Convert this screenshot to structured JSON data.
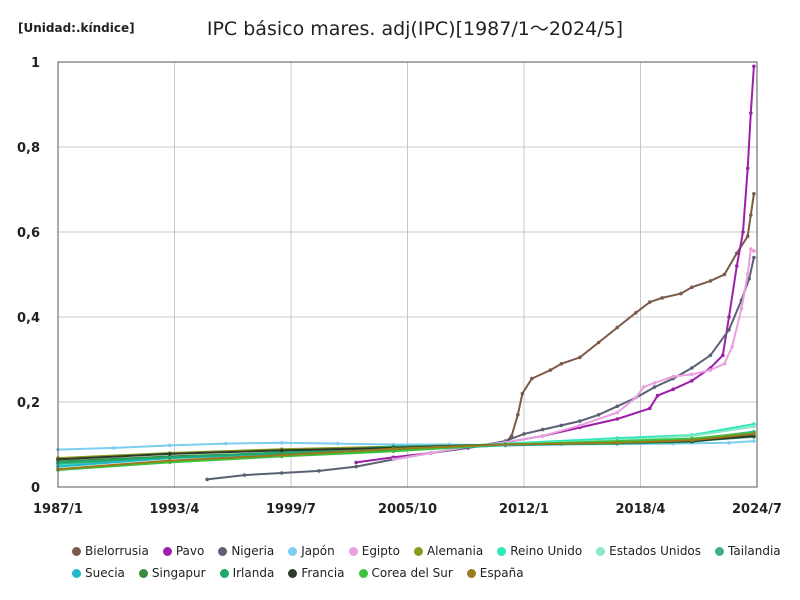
{
  "unit_label": "[Unidad:.kíndice]",
  "chart_data": {
    "type": "line",
    "title": "IPC básico mares. adj(IPC)[1987/1～2024/5]",
    "xlabel": "",
    "ylabel": "",
    "x_range": [
      "1987/1",
      "2024/7"
    ],
    "ylim": [
      0,
      1
    ],
    "grid": true,
    "legend_position": "bottom",
    "x_ticks": [
      "1987/1",
      "1993/4",
      "1999/7",
      "2005/10",
      "2012/1",
      "2018/4",
      "2024/7"
    ],
    "y_ticks": [
      "0",
      "0,2",
      "0,4",
      "0,6",
      "0,8",
      "1"
    ],
    "y_tick_values": [
      0,
      0.2,
      0.4,
      0.6,
      0.8,
      1
    ],
    "series": [
      {
        "name": "Bielorrusia",
        "color": "#7b5a4a",
        "points": [
          [
            "2009/1",
            0.095
          ],
          [
            "2010/1",
            0.098
          ],
          [
            "2011/1",
            0.105
          ],
          [
            "2011/5",
            0.12
          ],
          [
            "2011/9",
            0.17
          ],
          [
            "2011/12",
            0.22
          ],
          [
            "2012/6",
            0.255
          ],
          [
            "2013/6",
            0.275
          ],
          [
            "2014/1",
            0.29
          ],
          [
            "2015/1",
            0.305
          ],
          [
            "2016/1",
            0.34
          ],
          [
            "2017/1",
            0.375
          ],
          [
            "2018/1",
            0.41
          ],
          [
            "2018/10",
            0.435
          ],
          [
            "2019/6",
            0.445
          ],
          [
            "2020/6",
            0.455
          ],
          [
            "2021/1",
            0.47
          ],
          [
            "2022/1",
            0.485
          ],
          [
            "2022/10",
            0.5
          ],
          [
            "2023/6",
            0.55
          ],
          [
            "2024/1",
            0.59
          ],
          [
            "2024/3",
            0.64
          ],
          [
            "2024/5",
            0.69
          ]
        ]
      },
      {
        "name": "Pavo",
        "color": "#9b1fa8",
        "points": [
          [
            "2003/1",
            0.058
          ],
          [
            "2005/1",
            0.07
          ],
          [
            "2007/1",
            0.08
          ],
          [
            "2009/1",
            0.092
          ],
          [
            "2011/1",
            0.105
          ],
          [
            "2013/1",
            0.12
          ],
          [
            "2015/1",
            0.14
          ],
          [
            "2017/1",
            0.16
          ],
          [
            "2018/10",
            0.185
          ],
          [
            "2019/3",
            0.215
          ],
          [
            "2020/1",
            0.23
          ],
          [
            "2021/1",
            0.25
          ],
          [
            "2022/1",
            0.28
          ],
          [
            "2022/9",
            0.31
          ],
          [
            "2023/1",
            0.4
          ],
          [
            "2023/6",
            0.52
          ],
          [
            "2023/10",
            0.6
          ],
          [
            "2024/1",
            0.75
          ],
          [
            "2024/3",
            0.88
          ],
          [
            "2024/5",
            0.99
          ]
        ]
      },
      {
        "name": "Nigeria",
        "color": "#5a6173",
        "points": [
          [
            "1995/1",
            0.018
          ],
          [
            "1997/1",
            0.028
          ],
          [
            "1999/1",
            0.033
          ],
          [
            "2001/1",
            0.038
          ],
          [
            "2003/1",
            0.048
          ],
          [
            "2005/1",
            0.065
          ],
          [
            "2007/1",
            0.08
          ],
          [
            "2009/1",
            0.092
          ],
          [
            "2011/1",
            0.108
          ],
          [
            "2012/1",
            0.125
          ],
          [
            "2013/1",
            0.135
          ],
          [
            "2014/1",
            0.145
          ],
          [
            "2015/1",
            0.155
          ],
          [
            "2016/1",
            0.17
          ],
          [
            "2017/1",
            0.19
          ],
          [
            "2018/1",
            0.21
          ],
          [
            "2019/1",
            0.235
          ],
          [
            "2020/1",
            0.255
          ],
          [
            "2021/1",
            0.28
          ],
          [
            "2022/1",
            0.31
          ],
          [
            "2023/1",
            0.37
          ],
          [
            "2023/9",
            0.44
          ],
          [
            "2024/2",
            0.49
          ],
          [
            "2024/5",
            0.54
          ]
        ]
      },
      {
        "name": "Japón",
        "color": "#7ccdf0",
        "points": [
          [
            "1987/1",
            0.088
          ],
          [
            "1990/1",
            0.092
          ],
          [
            "1993/1",
            0.098
          ],
          [
            "1996/1",
            0.102
          ],
          [
            "1999/1",
            0.104
          ],
          [
            "2002/1",
            0.102
          ],
          [
            "2005/1",
            0.1
          ],
          [
            "2008/1",
            0.1
          ],
          [
            "2011/1",
            0.098
          ],
          [
            "2014/1",
            0.1
          ],
          [
            "2017/1",
            0.101
          ],
          [
            "2020/1",
            0.102
          ],
          [
            "2023/1",
            0.104
          ],
          [
            "2024/5",
            0.108
          ]
        ]
      },
      {
        "name": "Egipto",
        "color": "#e8a0e0",
        "points": [
          [
            "2005/1",
            0.065
          ],
          [
            "2007/1",
            0.08
          ],
          [
            "2009/1",
            0.095
          ],
          [
            "2011/1",
            0.105
          ],
          [
            "2013/1",
            0.12
          ],
          [
            "2015/1",
            0.145
          ],
          [
            "2017/1",
            0.175
          ],
          [
            "2018/1",
            0.21
          ],
          [
            "2018/6",
            0.235
          ],
          [
            "2019/1",
            0.245
          ],
          [
            "2020/1",
            0.26
          ],
          [
            "2021/1",
            0.265
          ],
          [
            "2022/1",
            0.275
          ],
          [
            "2022/10",
            0.29
          ],
          [
            "2023/3",
            0.33
          ],
          [
            "2023/9",
            0.42
          ],
          [
            "2024/1",
            0.5
          ],
          [
            "2024/3",
            0.56
          ],
          [
            "2024/5",
            0.555
          ]
        ]
      },
      {
        "name": "Alemania",
        "color": "#8b9a1e",
        "points": [
          [
            "1987/1",
            0.068
          ],
          [
            "1993/1",
            0.08
          ],
          [
            "1999/1",
            0.089
          ],
          [
            "2005/1",
            0.095
          ],
          [
            "2011/1",
            0.1
          ],
          [
            "2017/1",
            0.108
          ],
          [
            "2021/1",
            0.112
          ],
          [
            "2024/5",
            0.13
          ]
        ]
      },
      {
        "name": "Reino Unido",
        "color": "#2ee8b8",
        "points": [
          [
            "1987/1",
            0.05
          ],
          [
            "1993/1",
            0.07
          ],
          [
            "1999/1",
            0.08
          ],
          [
            "2005/1",
            0.088
          ],
          [
            "2011/1",
            0.102
          ],
          [
            "2017/1",
            0.115
          ],
          [
            "2021/1",
            0.122
          ],
          [
            "2024/5",
            0.148
          ]
        ]
      },
      {
        "name": "Estados Unidos",
        "color": "#88e8c8",
        "points": [
          [
            "1987/1",
            0.055
          ],
          [
            "1993/1",
            0.07
          ],
          [
            "1999/1",
            0.08
          ],
          [
            "2005/1",
            0.09
          ],
          [
            "2011/1",
            0.1
          ],
          [
            "2017/1",
            0.11
          ],
          [
            "2021/1",
            0.12
          ],
          [
            "2024/5",
            0.142
          ]
        ]
      },
      {
        "name": "Tailandia",
        "color": "#3fae8c",
        "points": [
          [
            "1987/1",
            0.055
          ],
          [
            "1993/1",
            0.068
          ],
          [
            "1999/1",
            0.082
          ],
          [
            "2005/1",
            0.092
          ],
          [
            "2011/1",
            0.1
          ],
          [
            "2017/1",
            0.105
          ],
          [
            "2021/1",
            0.108
          ],
          [
            "2024/5",
            0.118
          ]
        ]
      },
      {
        "name": "Suecia",
        "color": "#22b8c8",
        "points": [
          [
            "1987/1",
            0.048
          ],
          [
            "1993/1",
            0.068
          ],
          [
            "1999/1",
            0.078
          ],
          [
            "2005/1",
            0.086
          ],
          [
            "2011/1",
            0.098
          ],
          [
            "2017/1",
            0.103
          ],
          [
            "2021/1",
            0.11
          ],
          [
            "2024/5",
            0.13
          ]
        ]
      },
      {
        "name": "Singapur",
        "color": "#3c8a3c",
        "points": [
          [
            "1987/1",
            0.06
          ],
          [
            "1993/1",
            0.072
          ],
          [
            "1999/1",
            0.08
          ],
          [
            "2005/1",
            0.086
          ],
          [
            "2011/1",
            0.1
          ],
          [
            "2017/1",
            0.104
          ],
          [
            "2021/1",
            0.108
          ],
          [
            "2024/5",
            0.12
          ]
        ]
      },
      {
        "name": "Irlanda",
        "color": "#1ea86a",
        "points": [
          [
            "1987/1",
            0.058
          ],
          [
            "1993/1",
            0.07
          ],
          [
            "1999/1",
            0.08
          ],
          [
            "2005/1",
            0.095
          ],
          [
            "2011/1",
            0.1
          ],
          [
            "2017/1",
            0.102
          ],
          [
            "2021/1",
            0.106
          ],
          [
            "2024/5",
            0.122
          ]
        ]
      },
      {
        "name": "Francia",
        "color": "#2b3a2a",
        "points": [
          [
            "1987/1",
            0.065
          ],
          [
            "1993/1",
            0.078
          ],
          [
            "1999/1",
            0.086
          ],
          [
            "2005/1",
            0.092
          ],
          [
            "2011/1",
            0.1
          ],
          [
            "2017/1",
            0.104
          ],
          [
            "2021/1",
            0.108
          ],
          [
            "2024/5",
            0.12
          ]
        ]
      },
      {
        "name": "Corea del Sur",
        "color": "#3cc23c",
        "points": [
          [
            "1987/1",
            0.04
          ],
          [
            "1993/1",
            0.058
          ],
          [
            "1999/1",
            0.072
          ],
          [
            "2005/1",
            0.084
          ],
          [
            "2011/1",
            0.1
          ],
          [
            "2017/1",
            0.108
          ],
          [
            "2021/1",
            0.114
          ],
          [
            "2024/5",
            0.128
          ]
        ]
      },
      {
        "name": "España",
        "color": "#9a7a1e",
        "points": [
          [
            "1987/1",
            0.042
          ],
          [
            "1993/1",
            0.062
          ],
          [
            "1999/1",
            0.075
          ],
          [
            "2005/1",
            0.09
          ],
          [
            "2011/1",
            0.1
          ],
          [
            "2017/1",
            0.104
          ],
          [
            "2021/1",
            0.11
          ],
          [
            "2024/5",
            0.125
          ]
        ]
      }
    ]
  }
}
